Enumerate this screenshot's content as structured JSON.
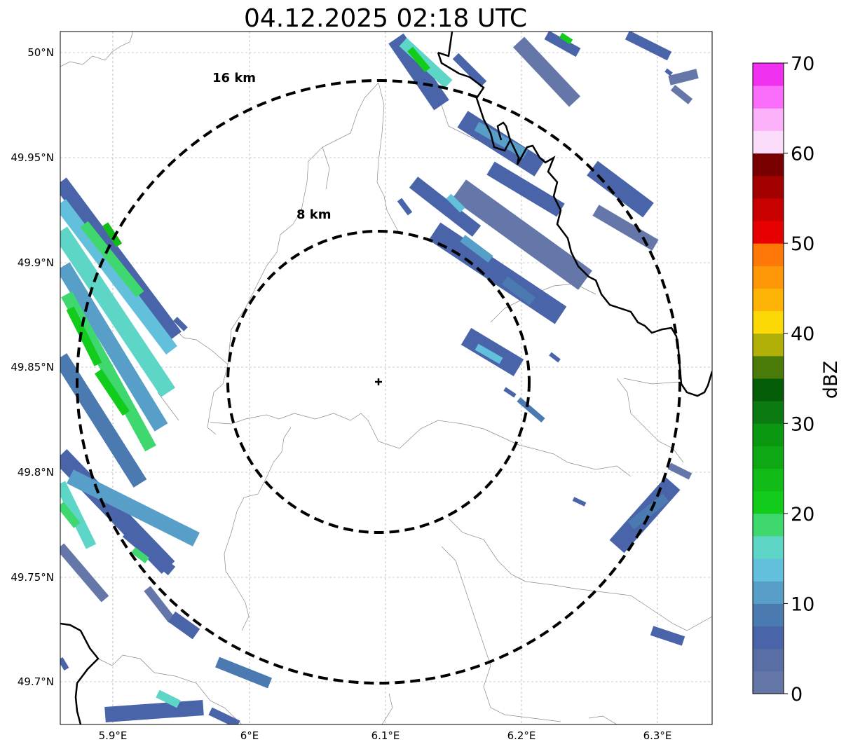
{
  "title": "04.12.2025 02:18 UTC",
  "map": {
    "x_ticks": [
      "5.9°E",
      "6°E",
      "6.1°E",
      "6.2°E",
      "6.3°E"
    ],
    "y_ticks": [
      "50°N",
      "49.95°N",
      "49.9°N",
      "49.85°N",
      "49.8°N",
      "49.75°N",
      "49.7°N"
    ],
    "rings": [
      {
        "label": "16 km",
        "radius_km": 16
      },
      {
        "label": "8 km",
        "radius_km": 8
      }
    ],
    "radar_site": {
      "lon": 6.095,
      "lat": 49.843
    }
  },
  "colorbar": {
    "label": "dBZ",
    "ticks": [
      "0",
      "10",
      "20",
      "30",
      "40",
      "50",
      "60",
      "70"
    ],
    "min": 0,
    "max": 70,
    "step": 2.5,
    "colors": [
      "#6577a8",
      "#5a6ea6",
      "#4964a8",
      "#4a7ab0",
      "#579fc8",
      "#62c0dc",
      "#5dd6c8",
      "#3fd86f",
      "#12cc1c",
      "#11bc18",
      "#0ea814",
      "#0b9811",
      "#0b7a10",
      "#045e08",
      "#4a7a08",
      "#b0b008",
      "#fdd807",
      "#fdb407",
      "#fd9707",
      "#fd7807",
      "#e60000",
      "#c80000",
      "#a30000",
      "#780000",
      "#fbdcfb",
      "#fbb2fb",
      "#fb6efb",
      "#f032f0"
    ]
  },
  "chart_data": {
    "type": "map",
    "title": "04.12.2025 02:18 UTC",
    "xlabel": "",
    "ylabel": "",
    "xlim": [
      5.86,
      6.34
    ],
    "ylim": [
      49.68,
      50.01
    ],
    "colorbar_label": "dBZ",
    "colorbar_range": [
      0,
      70
    ]
  }
}
